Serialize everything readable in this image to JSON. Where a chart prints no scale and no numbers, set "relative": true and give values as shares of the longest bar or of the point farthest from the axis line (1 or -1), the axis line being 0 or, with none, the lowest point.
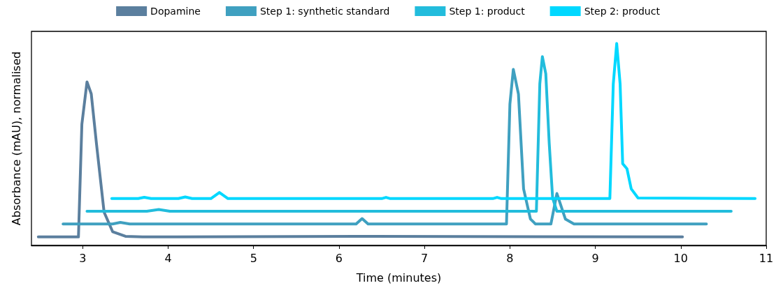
{
  "chart_data": {
    "type": "line",
    "relative": true,
    "xlabel": "Time (minutes)",
    "ylabel": "Absorbance (mAU), normalised",
    "xlim": [
      2.4,
      11
    ],
    "xticks": [
      3,
      4,
      5,
      6,
      7,
      8,
      9,
      10,
      11
    ],
    "legend": "top",
    "grid": false,
    "marker": "none",
    "line_style": "solid",
    "series": [
      {
        "name": "Dopamine",
        "color": "#5b7f9e",
        "x": [
          2.48,
          2.95,
          2.99,
          3.05,
          3.1,
          3.16,
          3.25,
          3.35,
          3.5,
          3.7,
          6.4,
          10.02
        ],
        "values": [
          0.042,
          0.042,
          0.6,
          0.81,
          0.75,
          0.507,
          0.165,
          0.068,
          0.045,
          0.042,
          0.045,
          0.042
        ]
      },
      {
        "name": "Step 1: synthetic standard",
        "color": "#3fa0c0",
        "x": [
          2.77,
          3.35,
          3.44,
          3.55,
          6.2,
          6.27,
          6.34,
          7.96,
          8.0,
          8.04,
          8.1,
          8.16,
          8.24,
          8.3,
          8.48,
          8.55,
          8.65,
          8.75,
          10.3
        ],
        "values": [
          0.106,
          0.106,
          0.114,
          0.106,
          0.106,
          0.133,
          0.106,
          0.106,
          0.7,
          0.872,
          0.75,
          0.28,
          0.131,
          0.106,
          0.106,
          0.257,
          0.13,
          0.106,
          0.106
        ]
      },
      {
        "name": "Step 1: product",
        "color": "#22bcdc",
        "x": [
          3.05,
          3.75,
          3.89,
          4.02,
          8.31,
          8.35,
          8.38,
          8.42,
          8.46,
          8.5,
          8.55,
          10.59
        ],
        "values": [
          0.169,
          0.169,
          0.178,
          0.169,
          0.169,
          0.8,
          0.935,
          0.85,
          0.507,
          0.234,
          0.169,
          0.169
        ]
      },
      {
        "name": "Step 2: product",
        "color": "#00d8ff",
        "x": [
          3.34,
          3.65,
          3.72,
          3.8,
          4.12,
          4.2,
          4.28,
          4.5,
          4.6,
          4.7,
          6.5,
          6.55,
          6.6,
          7.8,
          7.85,
          7.9,
          9.17,
          9.21,
          9.25,
          9.29,
          9.32,
          9.37,
          9.42,
          9.5,
          10.87
        ],
        "values": [
          0.232,
          0.232,
          0.238,
          0.232,
          0.232,
          0.24,
          0.232,
          0.232,
          0.262,
          0.232,
          0.232,
          0.238,
          0.232,
          0.232,
          0.238,
          0.232,
          0.232,
          0.8,
          1.0,
          0.8,
          0.405,
          0.38,
          0.28,
          0.235,
          0.232
        ]
      }
    ]
  }
}
